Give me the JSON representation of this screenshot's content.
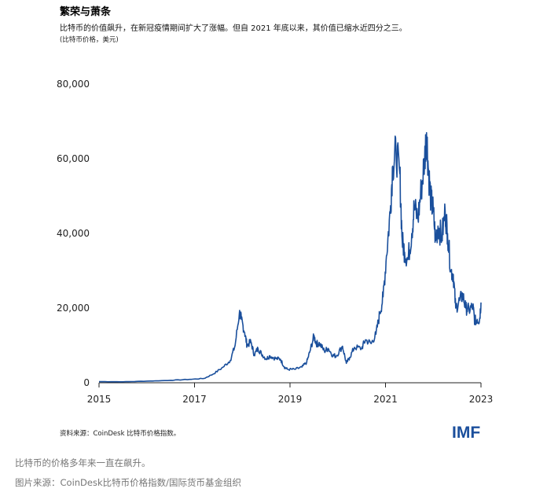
{
  "chart_data": {
    "type": "line",
    "title": "繁荣与萧条",
    "subtitle": "比特币的价值飙升，在新冠疫情期间扩大了涨幅。但自 2021 年底以来，其价值已缩水近四分之三。",
    "unit": "(比特币价格，美元)",
    "xlabel": "",
    "ylabel": "",
    "xlim": [
      2015,
      2023
    ],
    "ylim": [
      0,
      80000
    ],
    "x_ticks": [
      "2015",
      "2017",
      "2019",
      "2021",
      "2023"
    ],
    "y_ticks": [
      "0",
      "20,000",
      "40,000",
      "60,000",
      "80,000"
    ],
    "series": [
      {
        "name": "比特币价格",
        "color": "#1a4f9c",
        "points": [
          [
            2015.0,
            300
          ],
          [
            2015.5,
            260
          ],
          [
            2016.0,
            430
          ],
          [
            2016.5,
            650
          ],
          [
            2016.9,
            900
          ],
          [
            2017.2,
            1150
          ],
          [
            2017.4,
            2400
          ],
          [
            2017.6,
            4200
          ],
          [
            2017.75,
            6000
          ],
          [
            2017.85,
            10000
          ],
          [
            2017.94,
            18800
          ],
          [
            2017.98,
            17000
          ],
          [
            2018.05,
            13500
          ],
          [
            2018.1,
            10000
          ],
          [
            2018.18,
            11000
          ],
          [
            2018.25,
            7500
          ],
          [
            2018.33,
            9200
          ],
          [
            2018.4,
            7800
          ],
          [
            2018.5,
            6400
          ],
          [
            2018.58,
            7200
          ],
          [
            2018.7,
            6500
          ],
          [
            2018.8,
            6300
          ],
          [
            2018.88,
            4200
          ],
          [
            2018.95,
            3600
          ],
          [
            2019.1,
            3600
          ],
          [
            2019.25,
            4200
          ],
          [
            2019.35,
            5500
          ],
          [
            2019.42,
            8500
          ],
          [
            2019.5,
            12500
          ],
          [
            2019.55,
            10500
          ],
          [
            2019.62,
            10500
          ],
          [
            2019.72,
            8500
          ],
          [
            2019.8,
            9200
          ],
          [
            2019.9,
            7300
          ],
          [
            2019.97,
            7200
          ],
          [
            2020.1,
            9800
          ],
          [
            2020.18,
            5200
          ],
          [
            2020.25,
            6800
          ],
          [
            2020.35,
            9500
          ],
          [
            2020.5,
            9200
          ],
          [
            2020.58,
            11500
          ],
          [
            2020.7,
            10500
          ],
          [
            2020.8,
            13000
          ],
          [
            2020.88,
            18500
          ],
          [
            2020.95,
            23000
          ],
          [
            2021.02,
            34000
          ],
          [
            2021.1,
            46000
          ],
          [
            2021.15,
            58000
          ],
          [
            2021.22,
            62000
          ],
          [
            2021.3,
            56000
          ],
          [
            2021.35,
            38000
          ],
          [
            2021.4,
            35000
          ],
          [
            2021.47,
            33000
          ],
          [
            2021.55,
            40000
          ],
          [
            2021.6,
            47000
          ],
          [
            2021.68,
            44000
          ],
          [
            2021.75,
            52000
          ],
          [
            2021.82,
            60000
          ],
          [
            2021.86,
            67000
          ],
          [
            2021.9,
            57000
          ],
          [
            2021.95,
            49000
          ],
          [
            2022.0,
            46000
          ],
          [
            2022.05,
            38000
          ],
          [
            2022.1,
            42000
          ],
          [
            2022.18,
            39000
          ],
          [
            2022.25,
            46000
          ],
          [
            2022.3,
            40000
          ],
          [
            2022.37,
            30000
          ],
          [
            2022.42,
            29000
          ],
          [
            2022.47,
            20000
          ],
          [
            2022.55,
            22000
          ],
          [
            2022.62,
            23500
          ],
          [
            2022.68,
            20000
          ],
          [
            2022.75,
            19500
          ],
          [
            2022.83,
            20500
          ],
          [
            2022.87,
            16500
          ],
          [
            2022.92,
            17000
          ],
          [
            2022.97,
            16800
          ],
          [
            2023.0,
            21500
          ]
        ]
      }
    ]
  },
  "source": "资料来源：CoinDesk 比特币价格指数。",
  "logo": "IMF",
  "caption": "比特币的价格多年来一直在飙升。",
  "credit": "图片来源：CoinDesk比特币价格指数/国际货币基金组织"
}
